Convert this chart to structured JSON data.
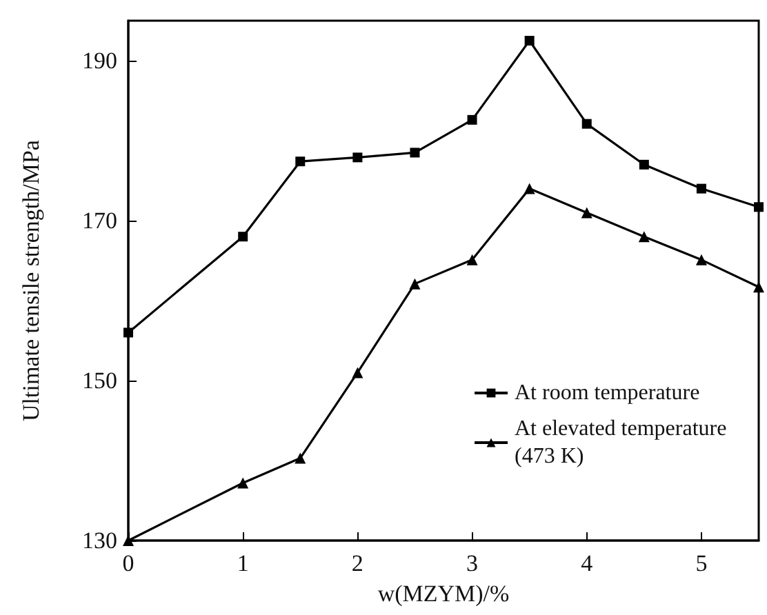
{
  "chart_data": {
    "type": "line",
    "xlabel": "w(MZYM)/%",
    "ylabel": "Ultimate tensile strength/MPa",
    "x": [
      0,
      1,
      1.5,
      2,
      2.5,
      3,
      3.5,
      4,
      4.5,
      5,
      5.5
    ],
    "series": [
      {
        "name": "At room temperature",
        "color": "#000000",
        "marker": "square",
        "values": [
          156,
          168,
          177.4,
          177.9,
          178.5,
          182.6,
          192.5,
          182.1,
          177,
          174,
          171.7
        ]
      },
      {
        "name": "At elevated temperature (473 K)",
        "color": "#000000",
        "marker": "triangle",
        "values": [
          130,
          137.2,
          140.3,
          151,
          162.1,
          165.1,
          174,
          171,
          168,
          165.1,
          161.7
        ]
      }
    ],
    "xlim": [
      0,
      5.5
    ],
    "xticks": [
      0,
      1,
      2,
      3,
      4,
      5
    ],
    "ylim": [
      130,
      195
    ],
    "yticks": [
      130,
      150,
      170,
      190
    ],
    "grid": false,
    "legend": "bottom right",
    "line_style": "solid"
  }
}
